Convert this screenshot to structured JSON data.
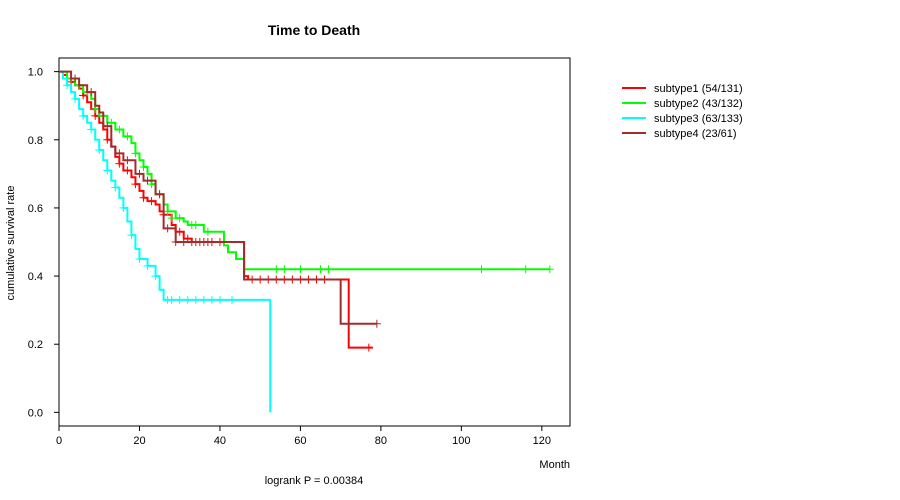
{
  "chart_data": {
    "type": "line",
    "title": "Time to Death",
    "xlabel": "Month",
    "ylabel": "cumulative survival rate",
    "xlim": [
      0,
      127
    ],
    "ylim": [
      -0.04,
      1.04
    ],
    "xticks": [
      0,
      20,
      40,
      60,
      80,
      100,
      120
    ],
    "yticks": [
      0.0,
      0.2,
      0.4,
      0.6,
      0.8,
      1.0
    ],
    "ytick_labels": [
      "0.0",
      "0.2",
      "0.4",
      "0.6",
      "0.8",
      "1.0"
    ],
    "annotation": "logrank P = 0.00384",
    "legend_position": "top-right",
    "series": [
      {
        "name": "subtype1 (54/131)",
        "color": "#ff0000",
        "steps": [
          [
            0,
            1.0
          ],
          [
            1,
            0.99
          ],
          [
            2,
            0.98
          ],
          [
            3,
            0.97
          ],
          [
            4,
            0.96
          ],
          [
            5,
            0.95
          ],
          [
            6,
            0.93
          ],
          [
            7,
            0.91
          ],
          [
            8,
            0.89
          ],
          [
            9,
            0.87
          ],
          [
            10,
            0.85
          ],
          [
            11,
            0.83
          ],
          [
            12,
            0.8
          ],
          [
            13,
            0.78
          ],
          [
            14,
            0.75
          ],
          [
            15,
            0.73
          ],
          [
            16,
            0.71
          ],
          [
            18,
            0.69
          ],
          [
            19,
            0.67
          ],
          [
            20,
            0.65
          ],
          [
            21,
            0.63
          ],
          [
            22,
            0.62
          ],
          [
            24,
            0.61
          ],
          [
            25,
            0.59
          ],
          [
            26,
            0.58
          ],
          [
            28,
            0.55
          ],
          [
            29,
            0.53
          ],
          [
            31,
            0.51
          ],
          [
            33,
            0.5
          ],
          [
            46,
            0.4
          ],
          [
            47,
            0.39
          ],
          [
            68,
            0.39
          ],
          [
            72,
            0.19
          ],
          [
            78,
            0.19
          ]
        ],
        "censors": [
          [
            3,
            0.97
          ],
          [
            6,
            0.93
          ],
          [
            9,
            0.87
          ],
          [
            12,
            0.8
          ],
          [
            15,
            0.73
          ],
          [
            17,
            0.71
          ],
          [
            19,
            0.67
          ],
          [
            21,
            0.63
          ],
          [
            23,
            0.62
          ],
          [
            26,
            0.58
          ],
          [
            30,
            0.53
          ],
          [
            32,
            0.51
          ],
          [
            34,
            0.5
          ],
          [
            36,
            0.5
          ],
          [
            38,
            0.5
          ],
          [
            40,
            0.5
          ],
          [
            48,
            0.39
          ],
          [
            50,
            0.39
          ],
          [
            52,
            0.39
          ],
          [
            54,
            0.39
          ],
          [
            56,
            0.39
          ],
          [
            58,
            0.39
          ],
          [
            60,
            0.39
          ],
          [
            62,
            0.39
          ],
          [
            64,
            0.39
          ],
          [
            66,
            0.39
          ],
          [
            77,
            0.19
          ]
        ]
      },
      {
        "name": "subtype2 (43/132)",
        "color": "#00ff00",
        "steps": [
          [
            0,
            1.0
          ],
          [
            2,
            0.98
          ],
          [
            4,
            0.96
          ],
          [
            6,
            0.94
          ],
          [
            8,
            0.92
          ],
          [
            9,
            0.89
          ],
          [
            10,
            0.87
          ],
          [
            12,
            0.85
          ],
          [
            14,
            0.83
          ],
          [
            16,
            0.81
          ],
          [
            18,
            0.79
          ],
          [
            19,
            0.76
          ],
          [
            20,
            0.74
          ],
          [
            21,
            0.72
          ],
          [
            22,
            0.7
          ],
          [
            23,
            0.67
          ],
          [
            24,
            0.64
          ],
          [
            26,
            0.61
          ],
          [
            27,
            0.59
          ],
          [
            29,
            0.57
          ],
          [
            31,
            0.56
          ],
          [
            32,
            0.55
          ],
          [
            36,
            0.53
          ],
          [
            41,
            0.49
          ],
          [
            42,
            0.47
          ],
          [
            44,
            0.45
          ],
          [
            46,
            0.42
          ],
          [
            122,
            0.42
          ]
        ],
        "censors": [
          [
            3,
            0.98
          ],
          [
            5,
            0.96
          ],
          [
            7,
            0.94
          ],
          [
            9,
            0.89
          ],
          [
            11,
            0.87
          ],
          [
            13,
            0.85
          ],
          [
            15,
            0.83
          ],
          [
            17,
            0.81
          ],
          [
            19,
            0.76
          ],
          [
            21,
            0.72
          ],
          [
            23,
            0.67
          ],
          [
            25,
            0.64
          ],
          [
            27,
            0.59
          ],
          [
            28,
            0.57
          ],
          [
            30,
            0.57
          ],
          [
            33,
            0.55
          ],
          [
            34,
            0.55
          ],
          [
            37,
            0.53
          ],
          [
            54,
            0.42
          ],
          [
            56,
            0.42
          ],
          [
            60,
            0.42
          ],
          [
            65,
            0.42
          ],
          [
            67,
            0.42
          ],
          [
            105,
            0.42
          ],
          [
            116,
            0.42
          ],
          [
            122,
            0.42
          ]
        ]
      },
      {
        "name": "subtype3 (63/133)",
        "color": "#00ffff",
        "steps": [
          [
            0,
            1.0
          ],
          [
            1,
            0.98
          ],
          [
            2,
            0.96
          ],
          [
            3,
            0.94
          ],
          [
            4,
            0.92
          ],
          [
            5,
            0.89
          ],
          [
            6,
            0.87
          ],
          [
            7,
            0.85
          ],
          [
            8,
            0.83
          ],
          [
            9,
            0.8
          ],
          [
            10,
            0.77
          ],
          [
            11,
            0.74
          ],
          [
            12,
            0.71
          ],
          [
            13,
            0.68
          ],
          [
            14,
            0.66
          ],
          [
            15,
            0.63
          ],
          [
            16,
            0.6
          ],
          [
            17,
            0.56
          ],
          [
            18,
            0.52
          ],
          [
            19,
            0.48
          ],
          [
            20,
            0.45
          ],
          [
            22,
            0.43
          ],
          [
            24,
            0.4
          ],
          [
            25,
            0.36
          ],
          [
            26,
            0.33
          ],
          [
            52,
            0.33
          ],
          [
            52.5,
            0.0
          ]
        ],
        "censors": [
          [
            2,
            0.96
          ],
          [
            4,
            0.92
          ],
          [
            6,
            0.87
          ],
          [
            8,
            0.83
          ],
          [
            10,
            0.77
          ],
          [
            12,
            0.71
          ],
          [
            14,
            0.66
          ],
          [
            16,
            0.6
          ],
          [
            18,
            0.52
          ],
          [
            20,
            0.45
          ],
          [
            22,
            0.43
          ],
          [
            24,
            0.4
          ],
          [
            27,
            0.33
          ],
          [
            28,
            0.33
          ],
          [
            30,
            0.33
          ],
          [
            32,
            0.33
          ],
          [
            34,
            0.33
          ],
          [
            36,
            0.33
          ],
          [
            38,
            0.33
          ],
          [
            40,
            0.33
          ],
          [
            43,
            0.33
          ]
        ]
      },
      {
        "name": "subtype4 (23/61)",
        "color": "#a52a2a",
        "steps": [
          [
            0,
            1.0
          ],
          [
            3,
            0.98
          ],
          [
            5,
            0.96
          ],
          [
            7,
            0.94
          ],
          [
            9,
            0.9
          ],
          [
            10,
            0.88
          ],
          [
            11,
            0.84
          ],
          [
            13,
            0.78
          ],
          [
            14,
            0.76
          ],
          [
            16,
            0.74
          ],
          [
            19,
            0.7
          ],
          [
            21,
            0.68
          ],
          [
            24,
            0.64
          ],
          [
            26,
            0.54
          ],
          [
            29,
            0.5
          ],
          [
            41,
            0.5
          ],
          [
            46,
            0.39
          ],
          [
            69,
            0.39
          ],
          [
            70,
            0.26
          ],
          [
            79,
            0.26
          ]
        ],
        "censors": [
          [
            4,
            0.98
          ],
          [
            8,
            0.94
          ],
          [
            12,
            0.84
          ],
          [
            15,
            0.76
          ],
          [
            17,
            0.74
          ],
          [
            20,
            0.7
          ],
          [
            22,
            0.68
          ],
          [
            25,
            0.64
          ],
          [
            27,
            0.54
          ],
          [
            29,
            0.5
          ],
          [
            31,
            0.5
          ],
          [
            33,
            0.5
          ],
          [
            35,
            0.5
          ],
          [
            37,
            0.5
          ],
          [
            72,
            0.26
          ],
          [
            79,
            0.26
          ]
        ]
      }
    ]
  }
}
